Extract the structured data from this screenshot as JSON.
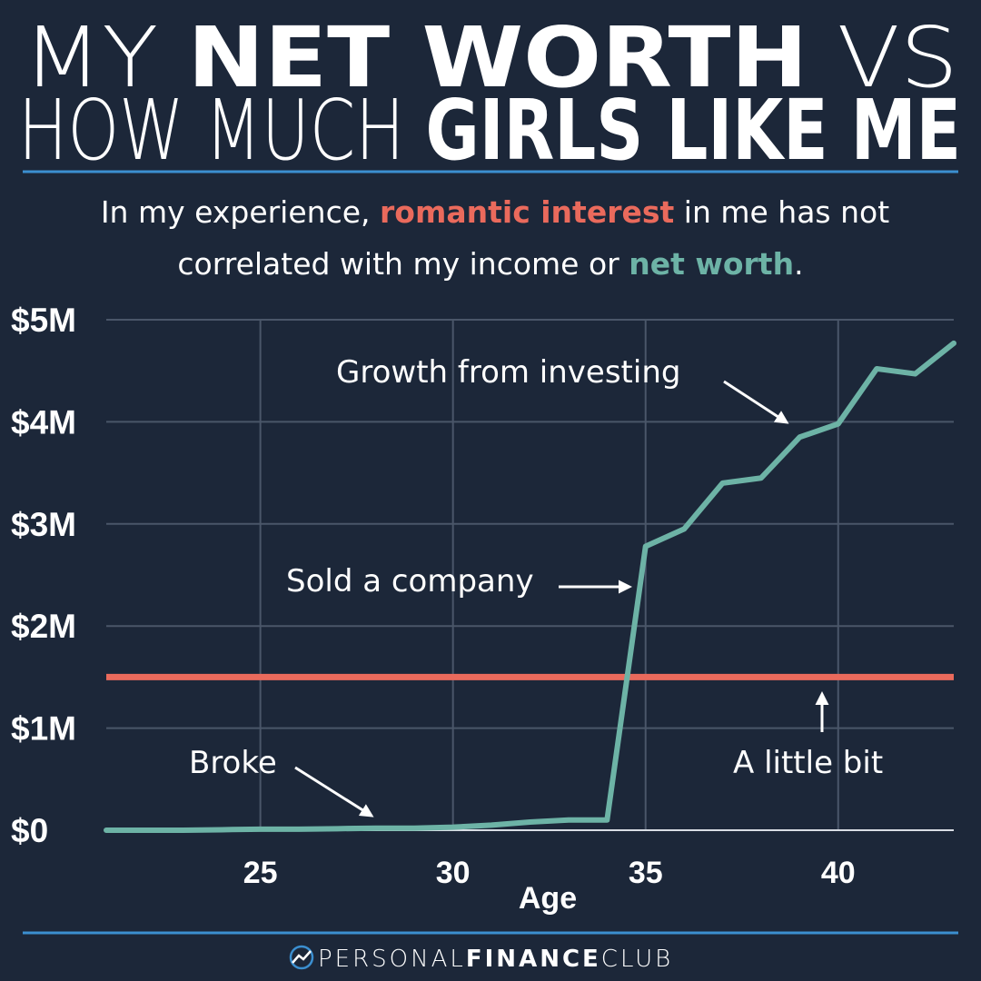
{
  "title": {
    "line1": {
      "pre": "MY",
      "bold": "NET WORTH",
      "post": "VS"
    },
    "line2": {
      "pre": "HOW MUCH",
      "bold": "GIRLS LIKE ME"
    }
  },
  "subtitle": {
    "line1": {
      "a": "In my experience,",
      "highlight": "romantic interest",
      "b": "in me has not"
    },
    "line2": {
      "a": "correlated with my income or",
      "highlight": "net worth",
      "b": "."
    }
  },
  "chart_data": {
    "type": "line",
    "x_label": "Age",
    "x": [
      21,
      22,
      23,
      24,
      25,
      26,
      27,
      28,
      29,
      30,
      31,
      32,
      33,
      34,
      35,
      36,
      37,
      38,
      39,
      40,
      41,
      42,
      43
    ],
    "values": [
      0,
      0,
      0,
      5000,
      10000,
      10000,
      15000,
      20000,
      20000,
      30000,
      50000,
      80000,
      100000,
      100000,
      2780000,
      2950000,
      3400000,
      3450000,
      3850000,
      3980000,
      4520000,
      4470000,
      4770000
    ],
    "color": "#6db3a6",
    "reference_line": {
      "value": 1500000,
      "color": "#ea6a5c"
    },
    "xlim": [
      21,
      43
    ],
    "xticks": [
      25,
      30,
      35,
      40
    ],
    "ylim": [
      0,
      5000000
    ],
    "yticks": [
      {
        "value": 0,
        "label": "$0"
      },
      {
        "value": 1000000,
        "label": "$1M"
      },
      {
        "value": 2000000,
        "label": "$2M"
      },
      {
        "value": 3000000,
        "label": "$3M"
      },
      {
        "value": 4000000,
        "label": "$4M"
      },
      {
        "value": 5000000,
        "label": "$5M"
      }
    ],
    "grid": true,
    "annotations": [
      "Growth from investing",
      "Sold a company",
      "Broke",
      "A little bit"
    ]
  },
  "footer": {
    "a": "PERSONAL",
    "b": "FINANCE",
    "c": "CLUB"
  }
}
